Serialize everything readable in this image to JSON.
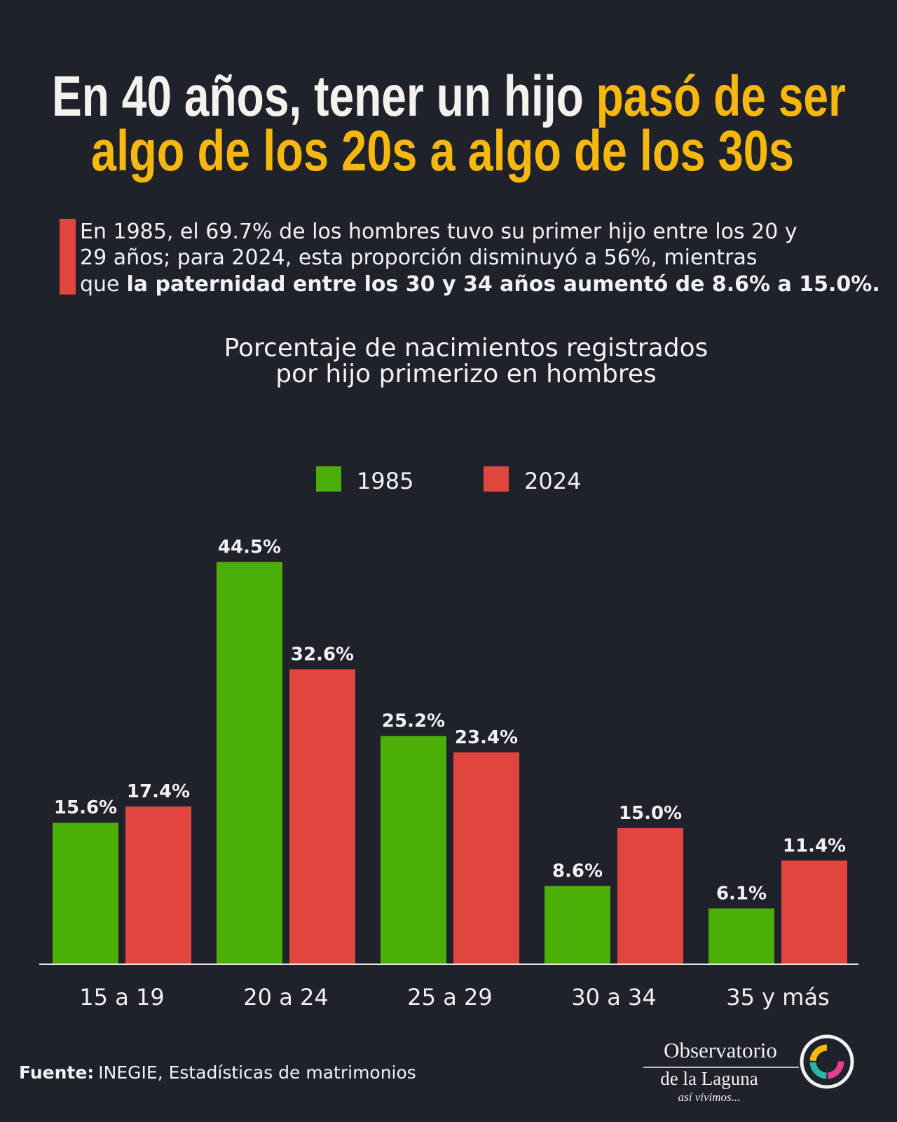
{
  "header": {
    "title_white": "En 40 años, tener un hijo",
    "title_yellow_1": "pasó de ser",
    "title_yellow_2": "algo de los 20s a algo de los 30s"
  },
  "intro": {
    "lines": [
      "En 1985, el 69.7% de los hombres tuvo su primer hijo entre los 20 y",
      "29 años; para 2024, esta proporción disminuyó a 56%, mientras",
      "que"
    ],
    "bold": "la paternidad entre los 30 y 34 años aumentó de 8.6% a 15.0%."
  },
  "chart_data": {
    "type": "bar",
    "title_lines": [
      "Porcentaje de nacimientos registrados",
      "por hijo primerizo en hombres"
    ],
    "categories": [
      "15 a 19",
      "20 a 24",
      "25 a 29",
      "30 a 34",
      "35 y más"
    ],
    "series": [
      {
        "name": "1985",
        "color": "#4caf08",
        "values": [
          15.6,
          44.5,
          25.2,
          8.6,
          6.1
        ],
        "value_labels": [
          "15.6%",
          "44.5%",
          "25.2%",
          "8.6%",
          "6.1%"
        ]
      },
      {
        "name": "2024",
        "color": "#e0453e",
        "values": [
          17.4,
          32.6,
          23.4,
          15.0,
          11.4
        ],
        "value_labels": [
          "17.4%",
          "32.6%",
          "23.4%",
          "15.0%",
          "11.4%"
        ]
      }
    ]
  },
  "footer": {
    "source_label": "Fuente:",
    "source_text": "INEGIE, Estadísticas de matrimonios",
    "logo_line_1": "Observatorio",
    "logo_line_2": "de la Laguna",
    "logo_tagline": "así vivimos..."
  }
}
